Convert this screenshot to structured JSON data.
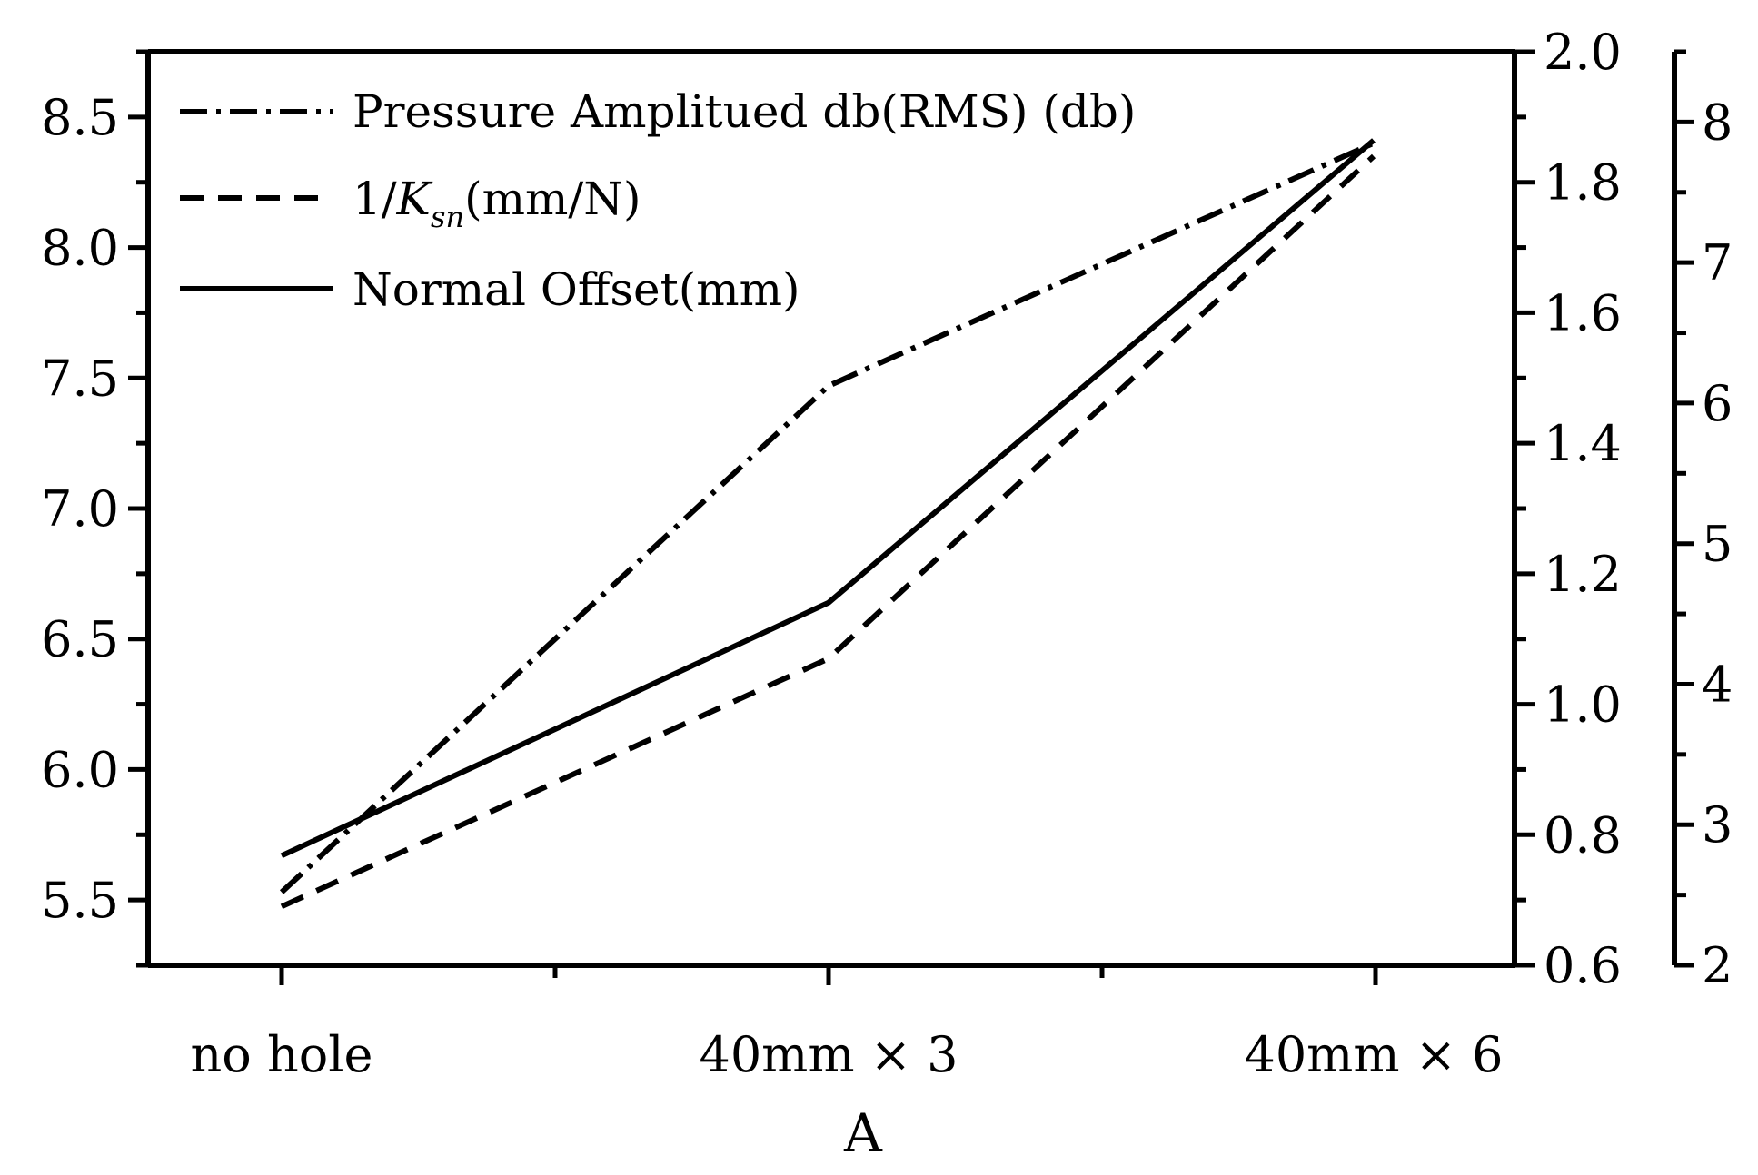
{
  "chart_data": {
    "type": "line",
    "title": "",
    "xlabel": "A",
    "categories": [
      "no hole",
      "40mm × 3",
      "40mm × 6"
    ],
    "axes": {
      "left": {
        "ylim": [
          5.25,
          8.75
        ],
        "ticks": [
          "5.5",
          "6.0",
          "6.5",
          "7.0",
          "7.5",
          "8.0",
          "8.5"
        ],
        "tick_values": [
          5.5,
          6.0,
          6.5,
          7.0,
          7.5,
          8.0,
          8.5
        ]
      },
      "right1": {
        "ylim": [
          0.6,
          2.0
        ],
        "ticks": [
          "0.6",
          "0.8",
          "1.0",
          "1.2",
          "1.4",
          "1.6",
          "1.8",
          "2.0"
        ],
        "tick_values": [
          0.6,
          0.8,
          1.0,
          1.2,
          1.4,
          1.6,
          1.8,
          2.0
        ]
      },
      "right2": {
        "ylim": [
          2,
          8.5
        ],
        "ticks": [
          "2",
          "3",
          "4",
          "5",
          "6",
          "7",
          "8"
        ],
        "tick_values": [
          2,
          3,
          4,
          5,
          6,
          7,
          8
        ]
      }
    },
    "series": [
      {
        "name": "Pressure Amplitued db(RMS) (db)",
        "axis": "left",
        "style": "dashdot",
        "values": [
          5.53,
          7.47,
          8.4
        ]
      },
      {
        "name_prefix": "1/",
        "name_k": "K",
        "name_sub": "sn",
        "name_suffix": "(mm/N)",
        "axis": "right1",
        "style": "dashed",
        "values": [
          0.69,
          1.07,
          1.84
        ]
      },
      {
        "name": "Normal Offset(mm)",
        "axis": "right2",
        "style": "solid",
        "values": [
          2.78,
          4.58,
          7.87
        ]
      }
    ],
    "legend_position": "top-left",
    "grid": false,
    "line_color": "#000000"
  }
}
